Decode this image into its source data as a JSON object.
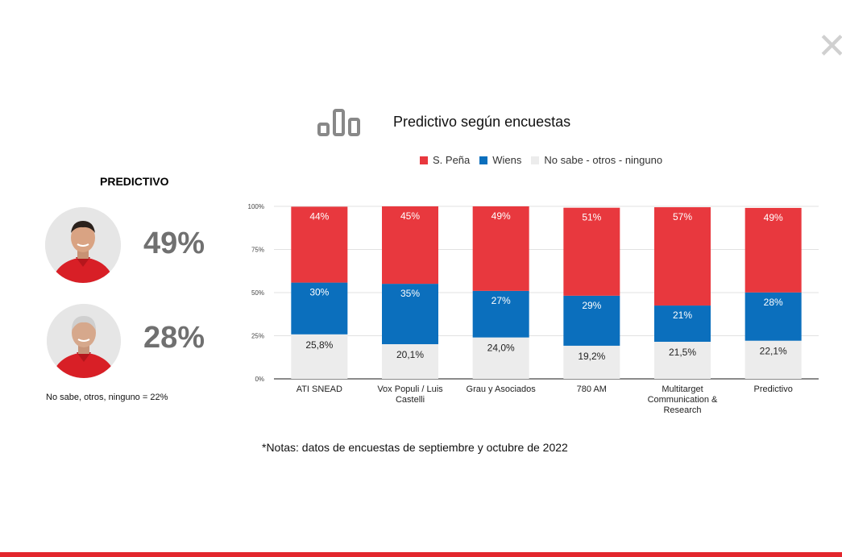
{
  "header": {
    "chart_title": "Predictivo según encuestas",
    "close_symbol": "✕"
  },
  "colors": {
    "pena": "#e8383e",
    "wiens": "#0b6fbd",
    "other": "#ececec",
    "accent": "#e3262d"
  },
  "legend": [
    {
      "label": "S. Peña",
      "color": "#e8383e"
    },
    {
      "label": "Wiens",
      "color": "#0b6fbd"
    },
    {
      "label": "No sabe - otros - ninguno",
      "color": "#ececec"
    }
  ],
  "left_panel": {
    "title": "PREDICTIVO",
    "candidate_1_pct": "49%",
    "candidate_2_pct": "28%",
    "footnote": "No sabe, otros, ninguno = 22%"
  },
  "note": "*Notas: datos de encuestas de septiembre y octubre de 2022",
  "chart_data": {
    "type": "bar",
    "stacked": true,
    "title": "Predictivo según encuestas",
    "categories": [
      [
        "ATI SNEAD"
      ],
      [
        "Vox Populi / Luis",
        "Castelli"
      ],
      [
        "Grau y Asociados"
      ],
      [
        "780 AM"
      ],
      [
        "Multitarget",
        "Communication &",
        "Research"
      ],
      [
        "Predictivo"
      ]
    ],
    "ylim": [
      0,
      100
    ],
    "yticks": [
      "0%",
      "25%",
      "50%",
      "75%",
      "100%"
    ],
    "series": [
      {
        "name": "No sabe - otros - ninguno",
        "values": [
          25.8,
          20.1,
          24.0,
          19.2,
          21.5,
          22.1
        ],
        "labels": [
          "25,8%",
          "20,1%",
          "24,0%",
          "19,2%",
          "21,5%",
          "22,1%"
        ]
      },
      {
        "name": "Wiens",
        "values": [
          30,
          35,
          27,
          29,
          21,
          28
        ],
        "labels": [
          "30%",
          "35%",
          "27%",
          "29%",
          "21%",
          "28%"
        ]
      },
      {
        "name": "S. Peña",
        "values": [
          44,
          45,
          49,
          51,
          57,
          49
        ],
        "labels": [
          "44%",
          "45%",
          "49%",
          "51%",
          "57%",
          "49%"
        ]
      }
    ]
  }
}
